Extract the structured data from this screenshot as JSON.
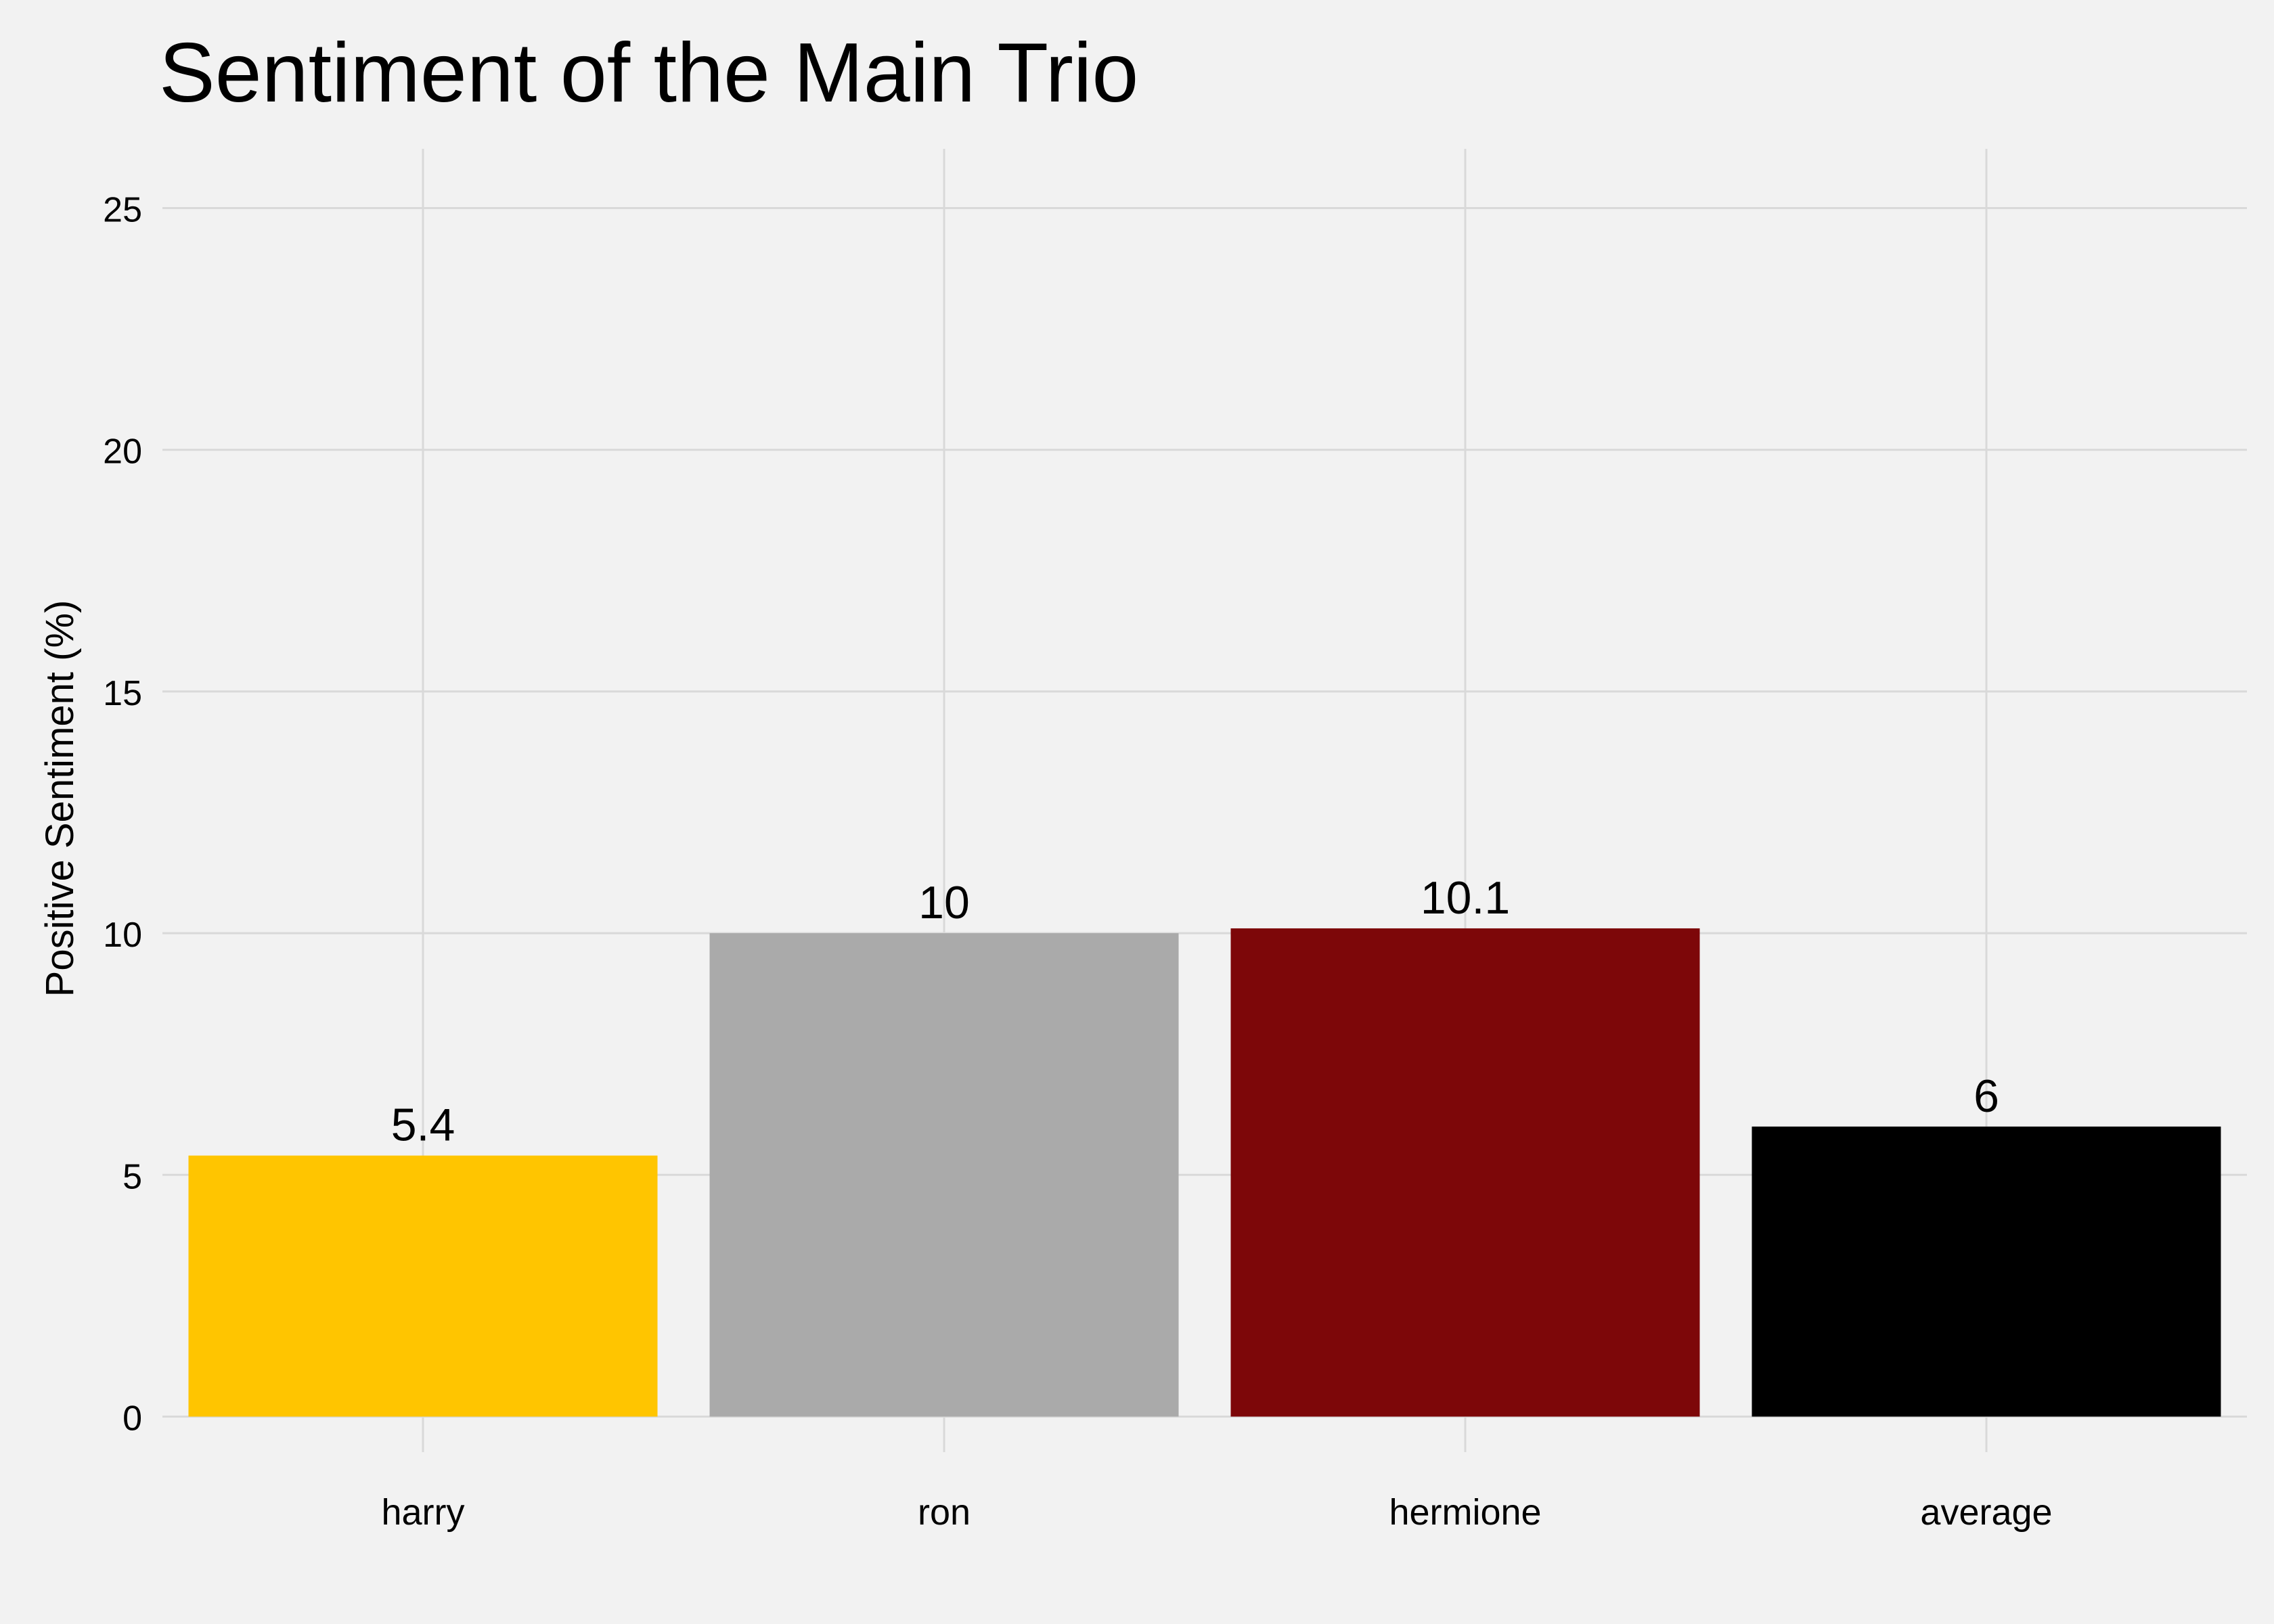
{
  "chart_data": {
    "type": "bar",
    "title": "Sentiment of the Main Trio",
    "xlabel": "",
    "ylabel": "Positive Sentiment (%)",
    "categories": [
      "harry",
      "ron",
      "hermione",
      "average"
    ],
    "values": [
      5.4,
      10,
      10.1,
      6
    ],
    "data_labels": [
      "5.4",
      "10",
      "10.1",
      "6"
    ],
    "bar_colors": [
      "#ffc500",
      "#aaaaaa",
      "#7d0709",
      "#000000"
    ],
    "ylim": [
      0,
      26
    ],
    "y_ticks": [
      0,
      5,
      10,
      15,
      20,
      25
    ],
    "y_tick_labels": [
      "0",
      "5",
      "10",
      "15",
      "20",
      "25"
    ],
    "grid": true,
    "legend": "none",
    "background_color": "#f2f2f2",
    "grid_color": "#d9d9d9"
  }
}
